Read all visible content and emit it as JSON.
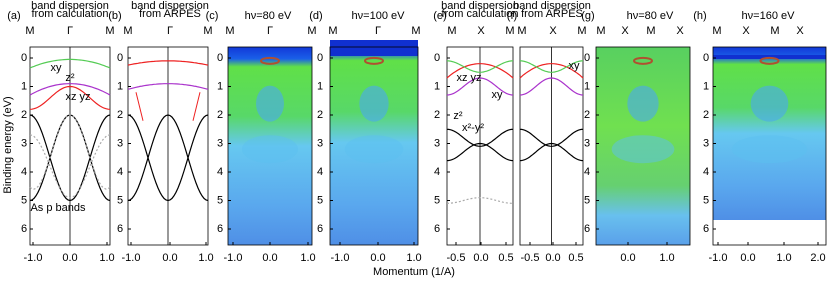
{
  "figure": {
    "y_axis_label": "Binding energy (eV)",
    "x_axis_label": "Momentum (1/A)",
    "panels": [
      {
        "letter": "(a)",
        "title": [
          "band dispersion",
          "from calculation"
        ],
        "top_labels": [
          "M",
          "Γ",
          "M"
        ],
        "y_ticks": [
          "0",
          "1",
          "2",
          "3",
          "4",
          "5",
          "6"
        ],
        "x_ticks": [
          "-1.0",
          "0.0",
          "1.0"
        ],
        "annotations": [
          "xy",
          "z²",
          "xz yz",
          "As p bands"
        ]
      },
      {
        "letter": "(b)",
        "title": [
          "band dispersion",
          "from ARPES"
        ],
        "top_labels": [
          "M",
          "Γ",
          "M"
        ],
        "y_ticks": [
          "0",
          "1",
          "2",
          "3",
          "4",
          "5",
          "6"
        ],
        "x_ticks": [
          "-1.0",
          "0.0",
          "1.0"
        ],
        "annotations": []
      },
      {
        "letter": "(c)",
        "title": [
          "hν=80 eV"
        ],
        "top_labels": [
          "M",
          "Γ",
          "M"
        ],
        "y_ticks": [
          "0",
          "1",
          "2",
          "3",
          "4",
          "5",
          "6"
        ],
        "x_ticks": [
          "-1.0",
          "0.0",
          "1.0"
        ],
        "annotations": []
      },
      {
        "letter": "(d)",
        "title": [
          "hν=100 eV"
        ],
        "top_labels": [
          "M",
          "Γ",
          "M"
        ],
        "y_ticks": [
          "0",
          "1",
          "2",
          "3",
          "4",
          "5",
          "6"
        ],
        "x_ticks": [
          "-1.0",
          "0.0",
          "1.0"
        ],
        "annotations": []
      },
      {
        "letter": "(e)",
        "title": [
          "band dispersion",
          "from calculation"
        ],
        "top_labels": [
          "M",
          "X",
          "M"
        ],
        "y_ticks": [
          "0",
          "1",
          "2",
          "3",
          "4",
          "5",
          "6"
        ],
        "x_ticks": [
          "-0.5",
          "0.0",
          "0.5"
        ],
        "annotations": [
          "xz yz",
          "xy",
          "z²",
          "x²-y²"
        ]
      },
      {
        "letter": "(f)",
        "title": [
          "band dispersion",
          "from ARPES"
        ],
        "top_labels": [
          "M",
          "X",
          "M"
        ],
        "y_ticks": [],
        "x_ticks": [
          "-0.5",
          "0.0",
          "0.5"
        ],
        "annotations": [
          "xy"
        ]
      },
      {
        "letter": "(g)",
        "title": [
          "hν=80 eV"
        ],
        "top_labels": [
          "M",
          "X",
          "M",
          "X"
        ],
        "y_ticks": [
          "0",
          "1",
          "2",
          "3",
          "4",
          "5",
          "6"
        ],
        "x_ticks": [
          "0.0",
          "1.0"
        ],
        "annotations": []
      },
      {
        "letter": "(h)",
        "title": [
          "hν=160 eV"
        ],
        "top_labels": [
          "M",
          "X",
          "M",
          "X"
        ],
        "y_ticks": [
          "0",
          "1",
          "2",
          "3",
          "4",
          "5",
          "6"
        ],
        "x_ticks": [
          "-1.0",
          "0.0",
          "1.0",
          "2.0"
        ],
        "annotations": []
      }
    ]
  }
}
